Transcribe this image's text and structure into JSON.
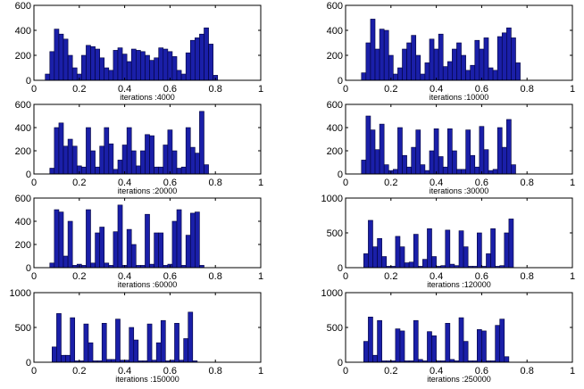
{
  "bar_fill": "#1a1fa8",
  "bar_stroke": "#00003a",
  "chart_data": [
    {
      "type": "bar",
      "xlabel": "",
      "xlim": [
        0,
        1
      ],
      "ylim": [
        0,
        600
      ],
      "xticks": [
        "0",
        "0.2",
        "0.4",
        "0.6",
        "0.8",
        "1"
      ],
      "yticks": [
        "0",
        "200",
        "400",
        "600"
      ],
      "bin_start": 0.05,
      "bin_width": 0.02,
      "values": [
        50,
        230,
        410,
        370,
        330,
        200,
        100,
        50,
        200,
        280,
        270,
        250,
        180,
        100,
        80,
        240,
        260,
        210,
        150,
        250,
        240,
        230,
        200,
        160,
        180,
        260,
        250,
        230,
        190,
        80,
        50,
        220,
        320,
        340,
        370,
        420,
        290,
        40
      ]
    },
    {
      "type": "bar",
      "xlabel": "iterations :4000",
      "xlim": [
        0,
        1
      ],
      "ylim": [
        0,
        600
      ],
      "xticks": [
        "0",
        "0.2",
        "0.4",
        "0.6",
        "0.8",
        "1"
      ],
      "yticks": [
        "0",
        "200",
        "400",
        "600"
      ],
      "bin_start": 0.07,
      "bin_width": 0.02,
      "values": [
        60,
        300,
        490,
        250,
        410,
        400,
        200,
        50,
        100,
        250,
        300,
        360,
        200,
        50,
        140,
        330,
        250,
        370,
        110,
        150,
        250,
        300,
        200,
        80,
        120,
        320,
        250,
        340,
        100,
        80,
        350,
        380,
        420,
        340,
        140
      ]
    },
    {
      "type": "bar",
      "xlabel": "iterations :10000",
      "xlim": [
        0,
        1
      ],
      "ylim": [
        0,
        600
      ],
      "xticks": [
        "0",
        "0.2",
        "0.4",
        "0.6",
        "0.8",
        "1"
      ],
      "yticks": [
        "0",
        "200",
        "400",
        "600"
      ],
      "bin_start": 0.07,
      "bin_width": 0.02,
      "values": [
        50,
        400,
        440,
        240,
        300,
        240,
        70,
        60,
        400,
        200,
        60,
        240,
        400,
        260,
        40,
        120,
        250,
        400,
        200,
        70,
        200,
        340,
        330,
        60,
        60,
        250,
        380,
        200,
        50,
        60,
        400,
        230,
        180,
        540,
        80
      ]
    },
    {
      "type": "bar",
      "xlabel": "iterations :20000",
      "xlim": [
        0,
        1
      ],
      "ylim": [
        0,
        600
      ],
      "xticks": [
        "0",
        "0.2",
        "0.4",
        "0.6",
        "0.8",
        "1"
      ],
      "yticks": [
        "0",
        "200",
        "400",
        "600"
      ],
      "bin_start": 0.07,
      "bin_width": 0.02,
      "values": [
        120,
        500,
        380,
        210,
        430,
        80,
        30,
        40,
        400,
        160,
        60,
        230,
        380,
        80,
        30,
        200,
        390,
        150,
        60,
        390,
        200,
        40,
        40,
        380,
        160,
        60,
        410,
        210,
        30,
        40,
        400,
        230,
        470,
        80
      ]
    },
    {
      "type": "bar",
      "xlabel": "iterations :30000",
      "xlim": [
        0,
        1
      ],
      "ylim": [
        0,
        600
      ],
      "xticks": [
        "0",
        "0.2",
        "0.4",
        "0.6",
        "0.8",
        "1"
      ],
      "yticks": [
        "0",
        "200",
        "400",
        "600"
      ],
      "bin_start": 0.07,
      "bin_width": 0.02,
      "values": [
        40,
        500,
        480,
        100,
        400,
        20,
        30,
        20,
        500,
        40,
        300,
        350,
        40,
        20,
        310,
        540,
        20,
        330,
        200,
        20,
        20,
        460,
        30,
        300,
        300,
        20,
        30,
        400,
        500,
        20,
        280,
        470,
        480,
        20
      ]
    },
    {
      "type": "bar",
      "xlabel": "iterations :60000",
      "xlim": [
        0,
        1
      ],
      "ylim": [
        0,
        1000
      ],
      "xticks": [
        "0",
        "0.2",
        "0.4",
        "0.6",
        "0.8",
        "1"
      ],
      "yticks": [
        "0",
        "500",
        "1000"
      ],
      "bin_start": 0.08,
      "bin_width": 0.02,
      "values": [
        200,
        680,
        300,
        420,
        160,
        20,
        20,
        450,
        300,
        70,
        80,
        480,
        20,
        120,
        560,
        160,
        20,
        30,
        540,
        50,
        30,
        530,
        300,
        20,
        20,
        500,
        20,
        200,
        560,
        20,
        30,
        500,
        700
      ]
    },
    {
      "type": "bar",
      "xlabel": "iterations :120000",
      "xlim": [
        0,
        1
      ],
      "ylim": [
        0,
        1000
      ],
      "xticks": [
        "0",
        "0.2",
        "0.4",
        "0.6",
        "0.8",
        "1"
      ],
      "yticks": [
        "0",
        "500",
        "1000"
      ],
      "bin_start": 0.08,
      "bin_width": 0.02,
      "values": [
        220,
        700,
        100,
        100,
        640,
        20,
        20,
        550,
        280,
        20,
        20,
        560,
        40,
        40,
        620,
        30,
        30,
        500,
        320,
        20,
        20,
        550,
        30,
        280,
        600,
        20,
        30,
        560,
        30,
        340,
        720,
        20
      ]
    },
    {
      "type": "bar",
      "xlabel": "iterations :150000",
      "xlim": [
        0,
        1
      ],
      "ylim": [
        0,
        1000
      ],
      "xticks": [
        "0",
        "0.2",
        "0.4",
        "0.6",
        "0.8",
        "1"
      ],
      "yticks": [
        "0",
        "500",
        "1000"
      ],
      "bin_start": 0.08,
      "bin_width": 0.02,
      "values": [
        300,
        650,
        100,
        600,
        20,
        20,
        20,
        480,
        450,
        20,
        20,
        600,
        40,
        20,
        440,
        380,
        20,
        20,
        560,
        40,
        20,
        640,
        300,
        20,
        20,
        470,
        450,
        20,
        20,
        530,
        620,
        80
      ]
    },
    {
      "type": "bar",
      "xlabel": "iterations :250000",
      "xlim": [
        0,
        1
      ],
      "ylim": [
        0,
        1000
      ],
      "xticks": [
        "0",
        "0.2",
        "0.4",
        "0.6",
        "0.8",
        "1"
      ],
      "yticks": [
        "0",
        "500",
        "1000"
      ],
      "bin_start": 0.08,
      "bin_width": 0.02,
      "values": [
        300,
        650,
        100,
        600,
        20,
        20,
        20,
        480,
        450,
        20,
        20,
        600,
        40,
        20,
        440,
        380,
        20,
        20,
        560,
        40,
        20,
        640,
        300,
        20,
        20,
        470,
        450,
        20,
        20,
        530,
        620,
        80
      ]
    }
  ]
}
